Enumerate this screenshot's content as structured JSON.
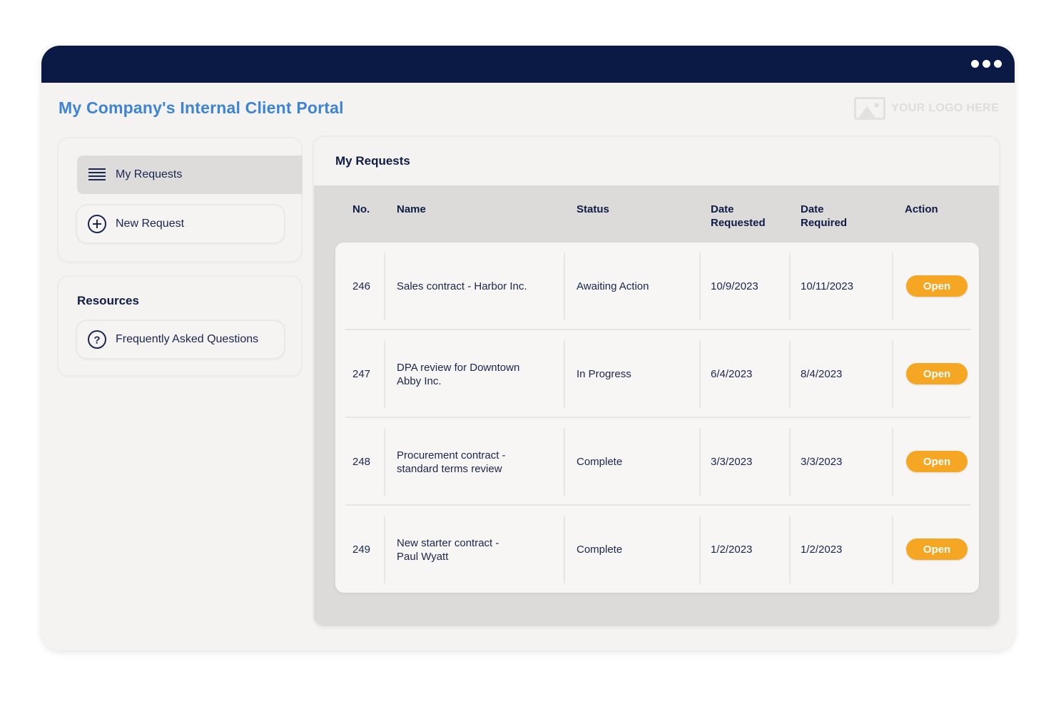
{
  "window": {
    "title": "My Company's Internal Client Portal",
    "menu_icon": "more-dots-icon",
    "logo_text": "YOUR LOGO HERE",
    "logo_icon": "image-placeholder-icon"
  },
  "sidebar": {
    "nav": [
      {
        "label": "My Requests",
        "icon": "list-icon",
        "active": true
      },
      {
        "label": "New Request",
        "icon": "plus-circle-icon",
        "active": false
      }
    ],
    "resources": {
      "heading": "Resources",
      "items": [
        {
          "label": "Frequently Asked Questions",
          "icon": "question-circle-icon"
        }
      ]
    }
  },
  "main": {
    "title": "My Requests",
    "columns": {
      "no": "No.",
      "name": "Name",
      "status": "Status",
      "date_requested_1": "Date",
      "date_requested_2": "Requested",
      "date_required_1": "Date",
      "date_required_2": "Required",
      "action": "Action"
    },
    "rows": [
      {
        "no": "246",
        "name_1": "Sales contract - Harbor Inc.",
        "name_2": "",
        "status": "Awaiting Action",
        "date_requested": "10/9/2023",
        "date_required": "10/11/2023",
        "action": "Open"
      },
      {
        "no": "247",
        "name_1": "DPA review for Downtown",
        "name_2": "Abby Inc.",
        "status": "In Progress",
        "date_requested": "6/4/2023",
        "date_required": "8/4/2023",
        "action": "Open"
      },
      {
        "no": "248",
        "name_1": "Procurement contract -",
        "name_2": "standard terms review",
        "status": "Complete",
        "date_requested": "3/3/2023",
        "date_required": "3/3/2023",
        "action": "Open"
      },
      {
        "no": "249",
        "name_1": "New starter contract -",
        "name_2": "Paul Wyatt",
        "status": "Complete",
        "date_requested": "1/2/2023",
        "date_required": "1/2/2023",
        "action": "Open"
      }
    ]
  },
  "colors": {
    "titlebar": "#0a1a44",
    "title_text": "#3d84d3",
    "accent_button": "#f5a623",
    "body_text": "#1a2550"
  }
}
